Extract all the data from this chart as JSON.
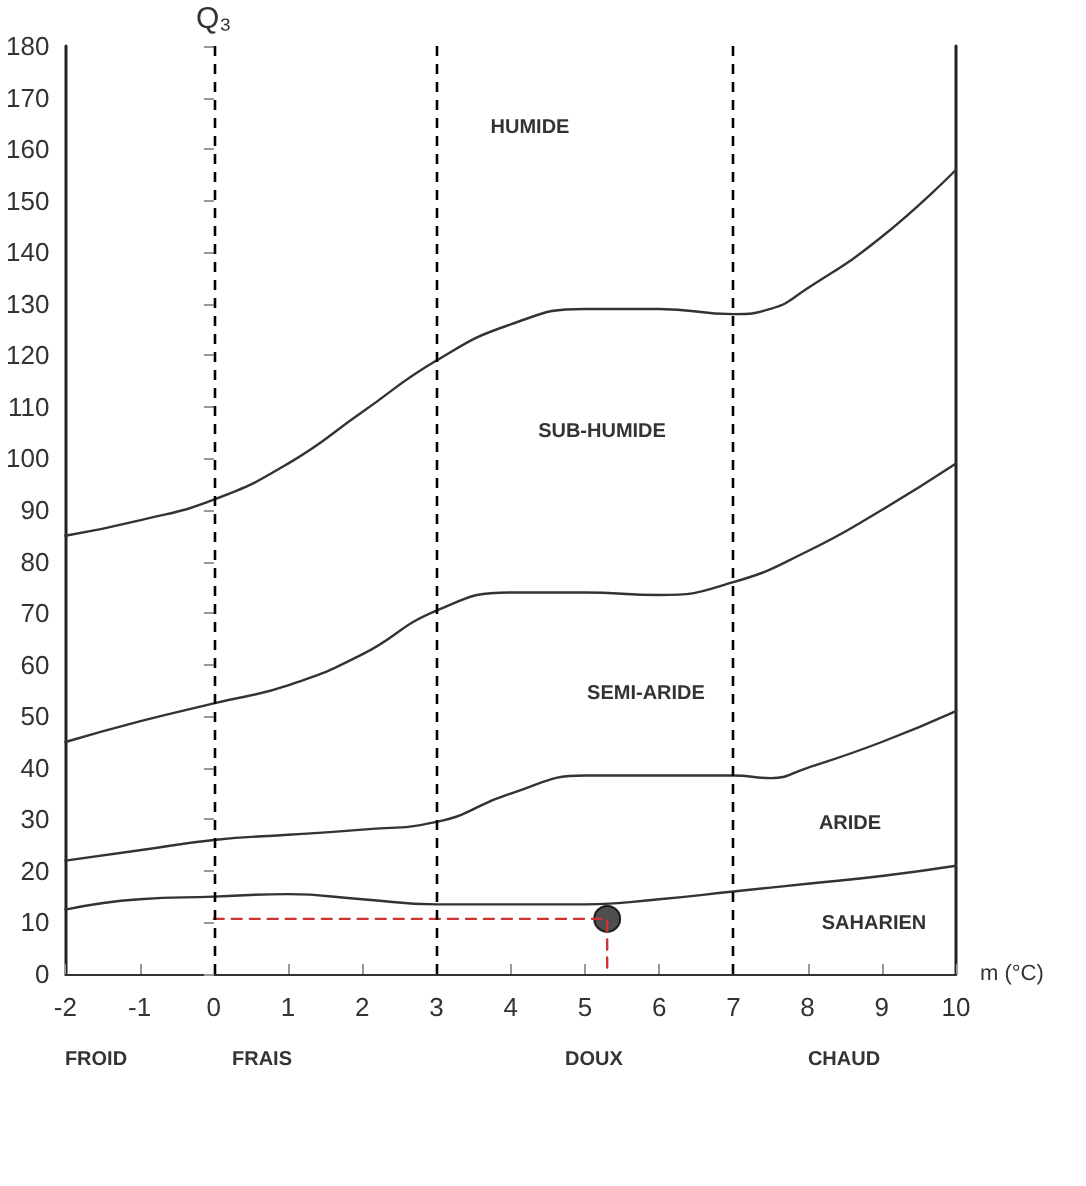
{
  "chart_data": {
    "type": "line",
    "ylabel": "Q₃",
    "xlabel": "m (°C)",
    "xlim": [
      -2,
      10
    ],
    "xticks": [
      -2,
      -1,
      0,
      1,
      2,
      3,
      4,
      5,
      6,
      7,
      8,
      9,
      10
    ],
    "ylim": [
      0,
      180
    ],
    "yticks": [
      0,
      10,
      20,
      30,
      40,
      50,
      60,
      70,
      80,
      90,
      100,
      110,
      120,
      130,
      140,
      150,
      160,
      170,
      180
    ],
    "series": [
      {
        "color": "#333333",
        "marker": "none",
        "x": [
          -2,
          -1,
          0,
          1,
          2,
          3,
          4,
          5,
          6,
          7,
          7.5,
          8,
          9,
          10
        ],
        "values": [
          85,
          88,
          92,
          99,
          109,
          119,
          126,
          129,
          129,
          128,
          129,
          133,
          143,
          156
        ]
      },
      {
        "color": "#333333",
        "marker": "none",
        "x": [
          -2,
          -1,
          0,
          1,
          2,
          3,
          4,
          5,
          6,
          7,
          8,
          9,
          10
        ],
        "values": [
          45,
          49,
          52.5,
          56,
          62,
          70.5,
          74,
          74,
          73.5,
          76,
          82,
          90,
          99
        ]
      },
      {
        "color": "#333333",
        "marker": "none",
        "x": [
          -2,
          -1,
          0,
          1,
          2,
          3,
          4,
          5,
          6,
          7,
          7.5,
          8,
          9,
          10
        ],
        "values": [
          22,
          24,
          26,
          27,
          28,
          29.5,
          35,
          38.5,
          38.5,
          38.5,
          38,
          40,
          45,
          51
        ]
      },
      {
        "color": "#333333",
        "marker": "none",
        "x": [
          -2,
          -1,
          0,
          1,
          2,
          3,
          4,
          5,
          6,
          7,
          8,
          9,
          10
        ],
        "values": [
          12.5,
          14.5,
          15,
          15.5,
          14.5,
          13.5,
          13.5,
          13.5,
          14.5,
          16,
          17.5,
          19,
          21
        ]
      },
      {
        "color": "#cc3333",
        "marker": "none",
        "line_style": "dashed",
        "x": [
          0,
          5.3,
          5.3
        ],
        "values": [
          10.7,
          10.7,
          0
        ]
      },
      {
        "type": "scatter",
        "color": "#222222",
        "marker": "circle",
        "x": [
          5.3
        ],
        "values": [
          10.7
        ]
      }
    ],
    "ref_lines": [
      {
        "axis": "x",
        "value": 0,
        "line_style": "dashed",
        "color": "#000000"
      },
      {
        "axis": "x",
        "value": 3,
        "line_style": "dashed",
        "color": "#000000"
      },
      {
        "axis": "x",
        "value": 7,
        "line_style": "dashed",
        "color": "#000000"
      }
    ],
    "annotations": [
      "HUMIDE",
      "SUB-HUMIDE",
      "SEMI-ARIDE",
      "ARIDE",
      "SAHARIEN",
      "FROID",
      "FRAIS",
      "DOUX",
      "CHAUD"
    ]
  }
}
